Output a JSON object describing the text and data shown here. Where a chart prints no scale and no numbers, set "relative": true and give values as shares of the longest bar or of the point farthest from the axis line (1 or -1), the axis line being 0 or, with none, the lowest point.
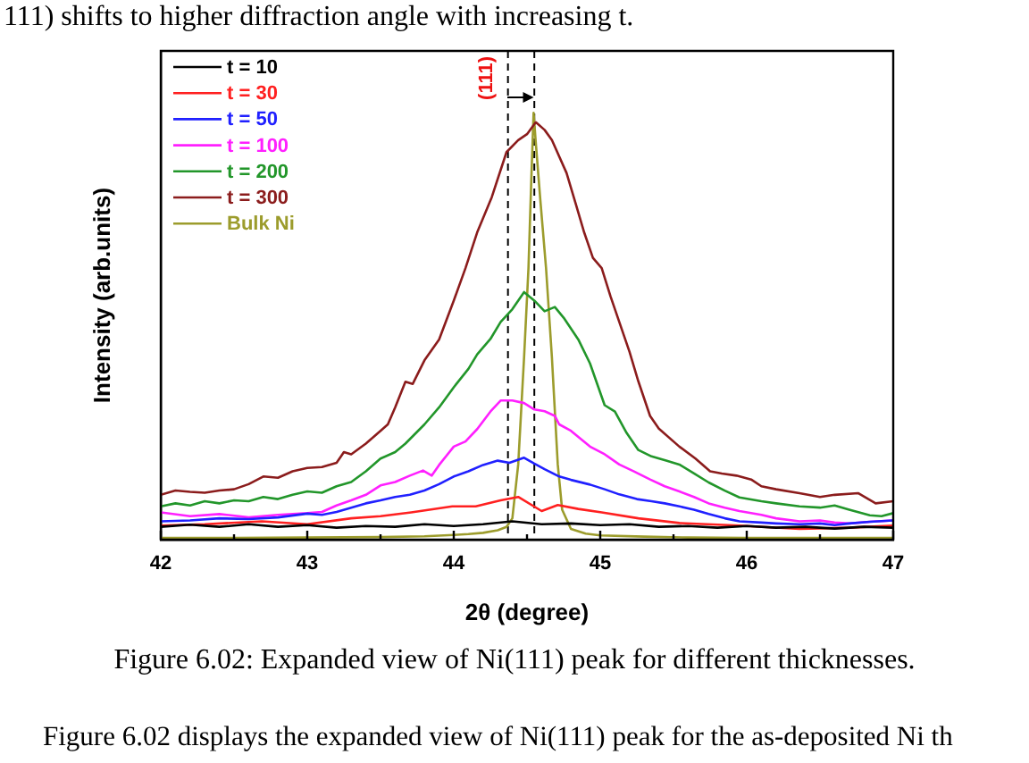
{
  "chart_data": {
    "type": "line",
    "title": "Figure 6.02: Expanded view of Ni(111) peak for different thicknesses.",
    "xlabel": "2θ (degree)",
    "ylabel": "Intensity (arb.units)",
    "relative": true,
    "legend": "top left",
    "annotations": [
      "111) shifts to higher diffraction angle with increasing t.",
      {
        "text": "(111)",
        "x": 44.37
      },
      "Figure 6.02 displays the expanded view of Ni(111) peak for the as-deposited Ni th"
    ],
    "xlim": [
      42,
      47
    ],
    "xticks": [
      42,
      {
        "value": 42.5,
        "label": null
      },
      43,
      {
        "value": 43.5,
        "label": null
      },
      44,
      {
        "value": 44.5,
        "label": null
      },
      45,
      {
        "value": 45.5,
        "label": null
      },
      46,
      {
        "value": 46.5,
        "label": null
      },
      47
    ],
    "ref_lines": [
      {
        "axis": "x",
        "value": 44.37,
        "color": "#000000",
        "line_style": "dashed"
      },
      {
        "axis": "x",
        "value": 44.55,
        "color": "#000000",
        "line_style": "dashed"
      }
    ],
    "series": [
      {
        "name": "t = 10",
        "color": "#000000",
        "x": [
          42.0,
          42.2,
          42.4,
          42.6,
          42.8,
          43.0,
          43.2,
          43.4,
          43.6,
          43.8,
          44.0,
          44.2,
          44.4,
          44.6,
          44.8,
          45.0,
          45.2,
          45.4,
          45.6,
          45.8,
          46.0,
          46.2,
          46.4,
          46.6,
          46.8,
          47.0
        ],
        "values": [
          0.03,
          0.035,
          0.03,
          0.036,
          0.03,
          0.034,
          0.028,
          0.032,
          0.03,
          0.036,
          0.032,
          0.036,
          0.043,
          0.036,
          0.038,
          0.034,
          0.036,
          0.03,
          0.032,
          0.028,
          0.032,
          0.028,
          0.03,
          0.026,
          0.03,
          0.028
        ]
      },
      {
        "name": "t = 30",
        "color": "#ff2020",
        "x": [
          42.0,
          42.3,
          42.69,
          43.0,
          43.3,
          43.5,
          43.71,
          43.99,
          44.15,
          44.32,
          44.44,
          44.6,
          44.71,
          44.85,
          45.01,
          45.26,
          45.54,
          45.95,
          46.36,
          46.7,
          47.0
        ],
        "values": [
          0.033,
          0.036,
          0.043,
          0.036,
          0.05,
          0.055,
          0.064,
          0.078,
          0.078,
          0.092,
          0.1,
          0.067,
          0.081,
          0.072,
          0.064,
          0.05,
          0.039,
          0.033,
          0.025,
          0.028,
          0.033
        ]
      },
      {
        "name": "t = 50",
        "color": "#2020ff",
        "x": [
          42.0,
          42.2,
          42.4,
          42.6,
          42.8,
          43.0,
          43.1,
          43.2,
          43.3,
          43.4,
          43.5,
          43.6,
          43.7,
          43.8,
          43.9,
          44.0,
          44.1,
          44.2,
          44.3,
          44.38,
          44.48,
          44.55,
          44.62,
          44.72,
          44.8,
          44.93,
          45.03,
          45.13,
          45.25,
          45.35,
          45.44,
          45.54,
          45.64,
          45.74,
          45.85,
          45.95,
          46.1,
          46.2,
          46.36,
          46.5,
          46.6,
          46.7,
          46.84,
          47.0
        ],
        "values": [
          0.043,
          0.045,
          0.05,
          0.048,
          0.052,
          0.061,
          0.058,
          0.065,
          0.075,
          0.085,
          0.092,
          0.1,
          0.105,
          0.115,
          0.13,
          0.148,
          0.16,
          0.175,
          0.185,
          0.18,
          0.192,
          0.178,
          0.165,
          0.148,
          0.14,
          0.129,
          0.118,
          0.106,
          0.095,
          0.09,
          0.085,
          0.078,
          0.07,
          0.06,
          0.05,
          0.043,
          0.04,
          0.038,
          0.036,
          0.038,
          0.034,
          0.038,
          0.042,
          0.045
        ]
      },
      {
        "name": "t = 100",
        "color": "#ff20ff",
        "x": [
          42.0,
          42.2,
          42.4,
          42.6,
          42.8,
          43.0,
          43.1,
          43.2,
          43.3,
          43.4,
          43.5,
          43.6,
          43.7,
          43.79,
          43.85,
          43.9,
          44.0,
          44.08,
          44.16,
          44.25,
          44.32,
          44.4,
          44.48,
          44.55,
          44.62,
          44.69,
          44.72,
          44.8,
          44.93,
          45.03,
          45.13,
          45.23,
          45.34,
          45.44,
          45.54,
          45.64,
          45.74,
          45.85,
          45.95,
          46.1,
          46.2,
          46.36,
          46.5,
          46.6,
          46.7,
          46.84,
          47.0
        ],
        "values": [
          0.064,
          0.055,
          0.06,
          0.052,
          0.058,
          0.062,
          0.065,
          0.08,
          0.092,
          0.105,
          0.127,
          0.135,
          0.15,
          0.162,
          0.15,
          0.175,
          0.218,
          0.23,
          0.259,
          0.3,
          0.326,
          0.326,
          0.32,
          0.305,
          0.301,
          0.29,
          0.27,
          0.255,
          0.218,
          0.2,
          0.176,
          0.16,
          0.141,
          0.125,
          0.113,
          0.1,
          0.085,
          0.075,
          0.067,
          0.058,
          0.05,
          0.043,
          0.045,
          0.04,
          0.038,
          0.042,
          0.045
        ]
      },
      {
        "name": "t = 200",
        "color": "#22962a",
        "x": [
          42.0,
          42.1,
          42.2,
          42.3,
          42.4,
          42.5,
          42.6,
          42.7,
          42.8,
          42.9,
          43.0,
          43.1,
          43.2,
          43.3,
          43.4,
          43.5,
          43.6,
          43.67,
          43.8,
          43.9,
          44.0,
          44.1,
          44.16,
          44.25,
          44.32,
          44.4,
          44.48,
          44.55,
          44.62,
          44.69,
          44.75,
          44.85,
          44.93,
          45.03,
          45.1,
          45.18,
          45.26,
          45.35,
          45.45,
          45.54,
          45.64,
          45.74,
          45.85,
          45.95,
          46.1,
          46.2,
          46.36,
          46.5,
          46.6,
          46.7,
          46.84,
          46.92,
          47.0
        ],
        "values": [
          0.078,
          0.085,
          0.08,
          0.09,
          0.085,
          0.092,
          0.09,
          0.1,
          0.095,
          0.105,
          0.113,
          0.11,
          0.125,
          0.135,
          0.16,
          0.19,
          0.205,
          0.225,
          0.27,
          0.31,
          0.357,
          0.4,
          0.434,
          0.47,
          0.51,
          0.54,
          0.58,
          0.56,
          0.535,
          0.545,
          0.52,
          0.469,
          0.413,
          0.315,
          0.3,
          0.25,
          0.21,
          0.195,
          0.185,
          0.176,
          0.155,
          0.134,
          0.115,
          0.099,
          0.09,
          0.085,
          0.078,
          0.075,
          0.08,
          0.07,
          0.057,
          0.055,
          0.062
        ]
      },
      {
        "name": "t = 300",
        "color": "#8b1c1c",
        "x": [
          42.0,
          42.1,
          42.2,
          42.3,
          42.4,
          42.5,
          42.6,
          42.7,
          42.8,
          42.9,
          43.0,
          43.1,
          43.2,
          43.25,
          43.3,
          43.4,
          43.5,
          43.55,
          43.6,
          43.67,
          43.72,
          43.8,
          43.9,
          44.0,
          44.08,
          44.16,
          44.26,
          44.36,
          44.44,
          44.5,
          44.56,
          44.62,
          44.67,
          44.77,
          44.83,
          44.89,
          44.95,
          45.01,
          45.07,
          45.13,
          45.2,
          45.26,
          45.34,
          45.4,
          45.54,
          45.65,
          45.75,
          45.83,
          45.93,
          46.03,
          46.1,
          46.2,
          46.36,
          46.5,
          46.6,
          46.76,
          46.88,
          47.0
        ],
        "values": [
          0.105,
          0.115,
          0.112,
          0.11,
          0.115,
          0.118,
          0.13,
          0.148,
          0.145,
          0.16,
          0.168,
          0.17,
          0.18,
          0.205,
          0.2,
          0.225,
          0.255,
          0.27,
          0.31,
          0.37,
          0.365,
          0.42,
          0.469,
          0.56,
          0.636,
          0.72,
          0.803,
          0.908,
          0.936,
          0.95,
          0.978,
          0.96,
          0.936,
          0.859,
          0.79,
          0.72,
          0.66,
          0.636,
          0.57,
          0.51,
          0.44,
          0.371,
          0.29,
          0.26,
          0.218,
          0.19,
          0.16,
          0.155,
          0.15,
          0.141,
          0.125,
          0.118,
          0.109,
          0.1,
          0.105,
          0.109,
          0.085,
          0.09
        ]
      },
      {
        "name": "Bulk Ni",
        "color": "#9c9c2c",
        "x": [
          42.0,
          42.5,
          43.0,
          43.5,
          43.8,
          44.0,
          44.1,
          44.2,
          44.3,
          44.36,
          44.4,
          44.44,
          44.48,
          44.51,
          44.53,
          44.545,
          44.56,
          44.59,
          44.63,
          44.67,
          44.71,
          44.74,
          44.8,
          44.9,
          45.0,
          45.3,
          45.6,
          46.0,
          46.5,
          47.0
        ],
        "values": [
          0.004,
          0.004,
          0.005,
          0.006,
          0.008,
          0.011,
          0.013,
          0.016,
          0.022,
          0.03,
          0.05,
          0.176,
          0.427,
          0.636,
          0.85,
          1,
          0.93,
          0.8,
          0.636,
          0.427,
          0.176,
          0.07,
          0.025,
          0.014,
          0.01,
          0.007,
          0.005,
          0.004,
          0.004,
          0.004
        ]
      }
    ]
  }
}
